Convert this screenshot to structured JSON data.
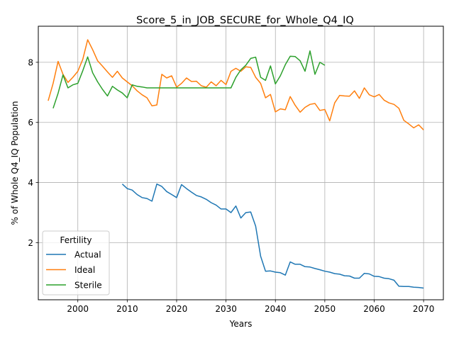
{
  "chart_data": {
    "type": "line",
    "title": "Score_5_in_JOB_SECURE_for_Whole_Q4_IQ",
    "xlabel": "Years",
    "ylabel": "% of Whole Q4_IQ Population",
    "xlim": [
      1992,
      2074
    ],
    "ylim": [
      0.1,
      9.2
    ],
    "xticks": [
      2000,
      2010,
      2020,
      2030,
      2040,
      2050,
      2060,
      2070
    ],
    "yticks": [
      2,
      4,
      6,
      8
    ],
    "grid": true,
    "legend": {
      "title": "Fertility",
      "position": "lower-left"
    },
    "series": [
      {
        "name": "Actual",
        "color": "#1f77b4",
        "x": [
          2009,
          2010,
          2011,
          2012,
          2013,
          2014,
          2015,
          2016,
          2017,
          2018,
          2019,
          2020,
          2021,
          2022,
          2023,
          2024,
          2025,
          2026,
          2027,
          2028,
          2029,
          2030,
          2031,
          2032,
          2033,
          2034,
          2035,
          2036,
          2037,
          2038,
          2039,
          2040,
          2041,
          2042,
          2043,
          2044,
          2045,
          2046,
          2047,
          2048,
          2049,
          2050,
          2051,
          2052,
          2053,
          2054,
          2055,
          2056,
          2057,
          2058,
          2059,
          2060,
          2061,
          2062,
          2063,
          2064,
          2065,
          2066,
          2067,
          2068,
          2069,
          2070
        ],
        "y": [
          3.95,
          3.8,
          3.75,
          3.6,
          3.5,
          3.47,
          3.38,
          3.95,
          3.87,
          3.7,
          3.6,
          3.5,
          3.93,
          3.8,
          3.68,
          3.57,
          3.52,
          3.44,
          3.33,
          3.25,
          3.12,
          3.12,
          3.0,
          3.22,
          2.82,
          3.0,
          3.02,
          2.55,
          1.55,
          1.05,
          1.06,
          1.02,
          1.0,
          0.92,
          1.36,
          1.28,
          1.28,
          1.2,
          1.19,
          1.14,
          1.1,
          1.05,
          1.02,
          0.97,
          0.95,
          0.9,
          0.89,
          0.82,
          0.82,
          0.98,
          0.96,
          0.88,
          0.87,
          0.82,
          0.8,
          0.75,
          0.55,
          0.54,
          0.54,
          0.52,
          0.51,
          0.49
        ]
      },
      {
        "name": "Ideal",
        "color": "#ff7f0e",
        "x": [
          1994,
          1995,
          1996,
          1997,
          1998,
          1999,
          2000,
          2001,
          2002,
          2003,
          2004,
          2005,
          2006,
          2007,
          2008,
          2009,
          2010,
          2011,
          2012,
          2013,
          2014,
          2015,
          2016,
          2017,
          2018,
          2019,
          2020,
          2021,
          2022,
          2023,
          2024,
          2025,
          2026,
          2027,
          2028,
          2029,
          2030,
          2031,
          2032,
          2033,
          2034,
          2035,
          2036,
          2037,
          2038,
          2039,
          2040,
          2041,
          2042,
          2043,
          2044,
          2045,
          2046,
          2047,
          2048,
          2049,
          2050,
          2051,
          2052,
          2053,
          2054,
          2055,
          2056,
          2057,
          2058,
          2059,
          2060,
          2061,
          2062,
          2063,
          2064,
          2065,
          2066,
          2067,
          2068,
          2069,
          2070
        ],
        "y": [
          6.72,
          7.3,
          8.03,
          7.6,
          7.33,
          7.5,
          7.7,
          8.1,
          8.75,
          8.42,
          8.05,
          7.87,
          7.68,
          7.5,
          7.7,
          7.48,
          7.35,
          7.22,
          7.05,
          6.92,
          6.82,
          6.55,
          6.58,
          7.6,
          7.48,
          7.55,
          7.17,
          7.3,
          7.48,
          7.36,
          7.37,
          7.22,
          7.17,
          7.35,
          7.22,
          7.4,
          7.26,
          7.7,
          7.8,
          7.7,
          7.85,
          7.83,
          7.5,
          7.3,
          6.82,
          6.93,
          6.35,
          6.45,
          6.42,
          6.86,
          6.57,
          6.34,
          6.5,
          6.6,
          6.63,
          6.4,
          6.43,
          6.05,
          6.65,
          6.9,
          6.88,
          6.87,
          7.05,
          6.8,
          7.15,
          6.92,
          6.85,
          6.93,
          6.74,
          6.65,
          6.6,
          6.47,
          6.07,
          5.95,
          5.82,
          5.92,
          5.75
        ]
      },
      {
        "name": "Sterile",
        "color": "#2ca02c",
        "x": [
          1995,
          1996,
          1997,
          1998,
          1999,
          2000,
          2001,
          2002,
          2003,
          2004,
          2005,
          2006,
          2007,
          2008,
          2009,
          2010,
          2011,
          2012,
          2013,
          2014,
          2015,
          2016,
          2017,
          2018,
          2019,
          2020,
          2021,
          2022,
          2023,
          2024,
          2025,
          2026,
          2027,
          2028,
          2029,
          2030,
          2031,
          2032,
          2033,
          2034,
          2035,
          2036,
          2037,
          2038,
          2039,
          2040,
          2041,
          2042,
          2043,
          2044,
          2045,
          2046,
          2047,
          2048,
          2049,
          2050
        ],
        "y": [
          6.47,
          6.97,
          7.58,
          7.15,
          7.25,
          7.3,
          7.72,
          8.18,
          7.65,
          7.35,
          7.1,
          6.88,
          7.2,
          7.08,
          6.98,
          6.82,
          7.25,
          7.2,
          7.18,
          7.15,
          7.15,
          7.15,
          7.15,
          7.15,
          7.15,
          7.15,
          7.15,
          7.15,
          7.15,
          7.15,
          7.15,
          7.15,
          7.15,
          7.15,
          7.15,
          7.15,
          7.15,
          7.5,
          7.75,
          7.9,
          8.13,
          8.17,
          7.5,
          7.4,
          7.88,
          7.28,
          7.55,
          7.92,
          8.2,
          8.19,
          8.05,
          7.7,
          8.38,
          7.6,
          8.0,
          7.9
        ]
      }
    ]
  }
}
